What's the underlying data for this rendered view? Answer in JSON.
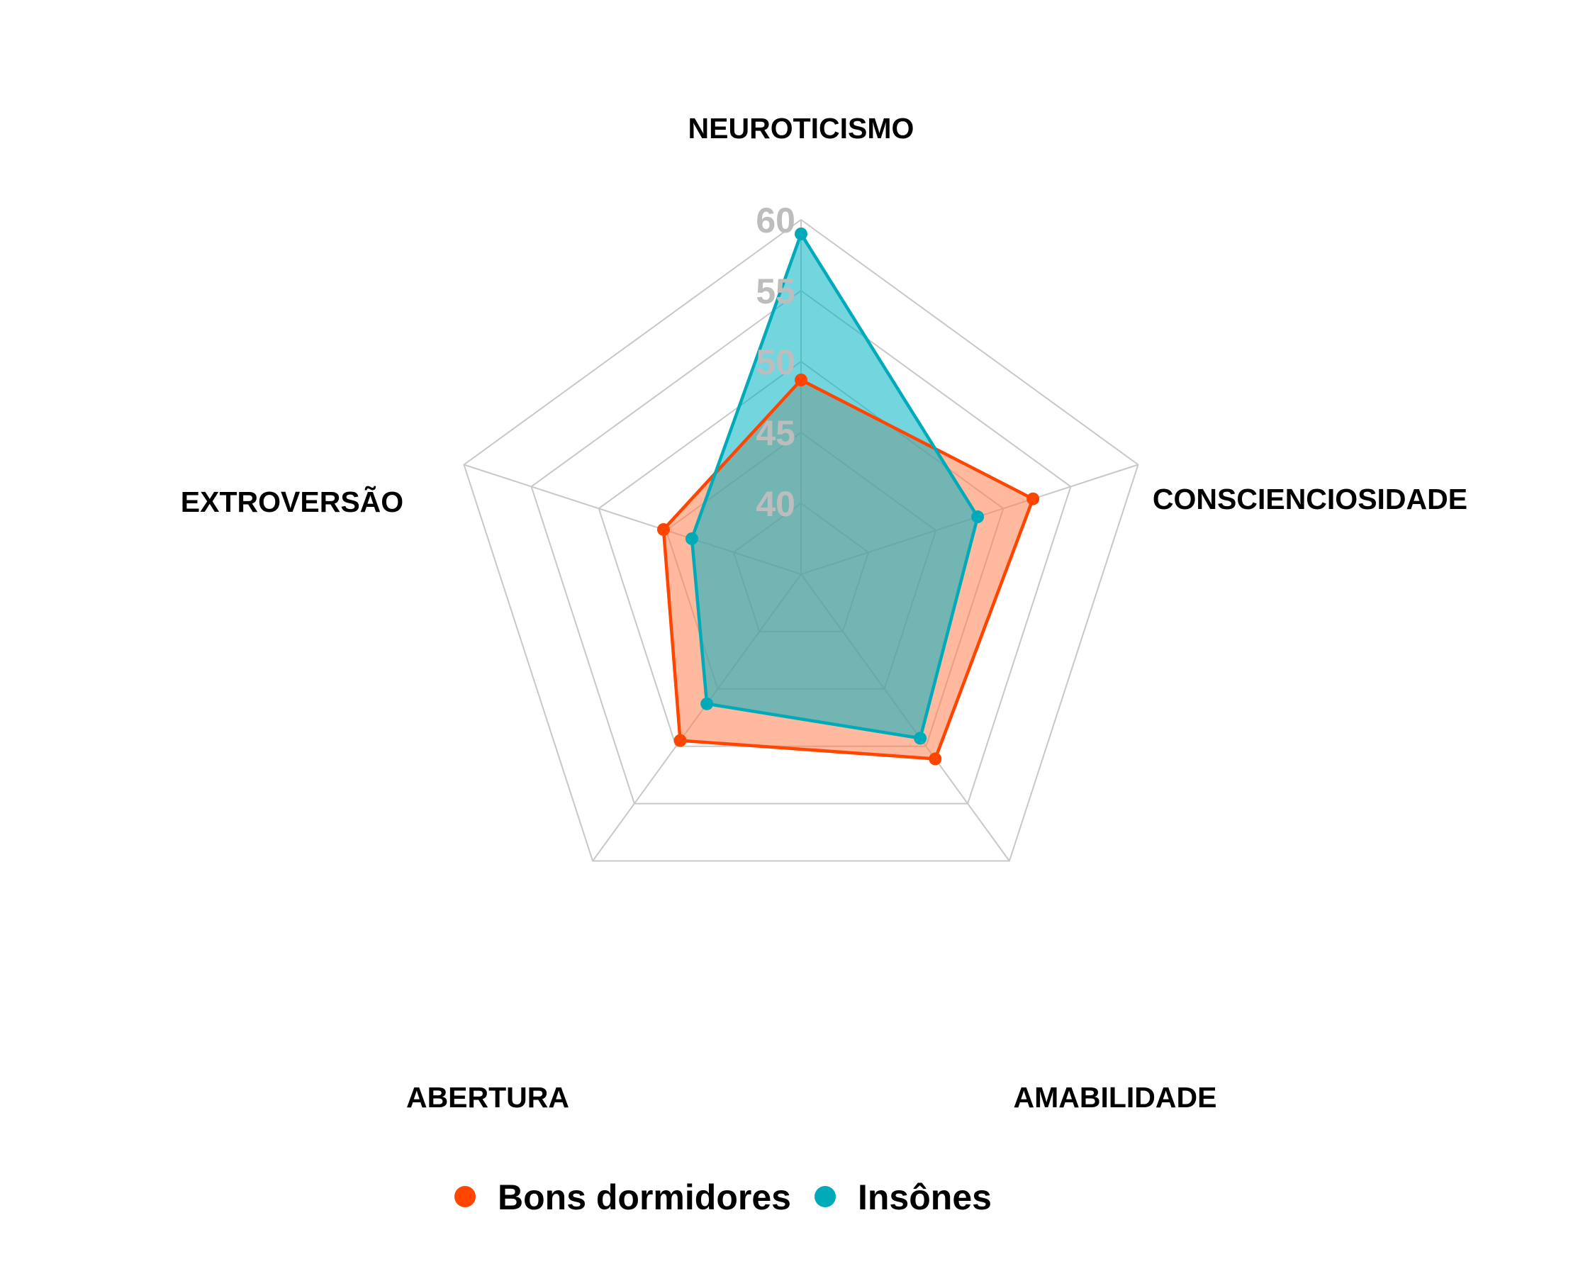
{
  "chart_data": {
    "type": "radar",
    "title": "",
    "axes": [
      "NEUROTICISMO",
      "CONSCIENCIOSIDADE",
      "AMABILIDADE",
      "ABERTURA",
      "EXTROVERSÃO"
    ],
    "range": [
      35,
      60
    ],
    "ticks": [
      40,
      45,
      50,
      55,
      60
    ],
    "grid": true,
    "legend_position": "bottom",
    "series": [
      {
        "name": "Bons dormidores",
        "color": "#FF4500",
        "fill": "#FF7F50",
        "values": [
          48.7,
          52.2,
          51.1,
          49.5,
          45.2
        ]
      },
      {
        "name": "Insônes",
        "color": "#00AAB8",
        "fill": "#00B2C3",
        "values": [
          59.0,
          48.1,
          49.3,
          46.3,
          43.1
        ]
      }
    ]
  }
}
